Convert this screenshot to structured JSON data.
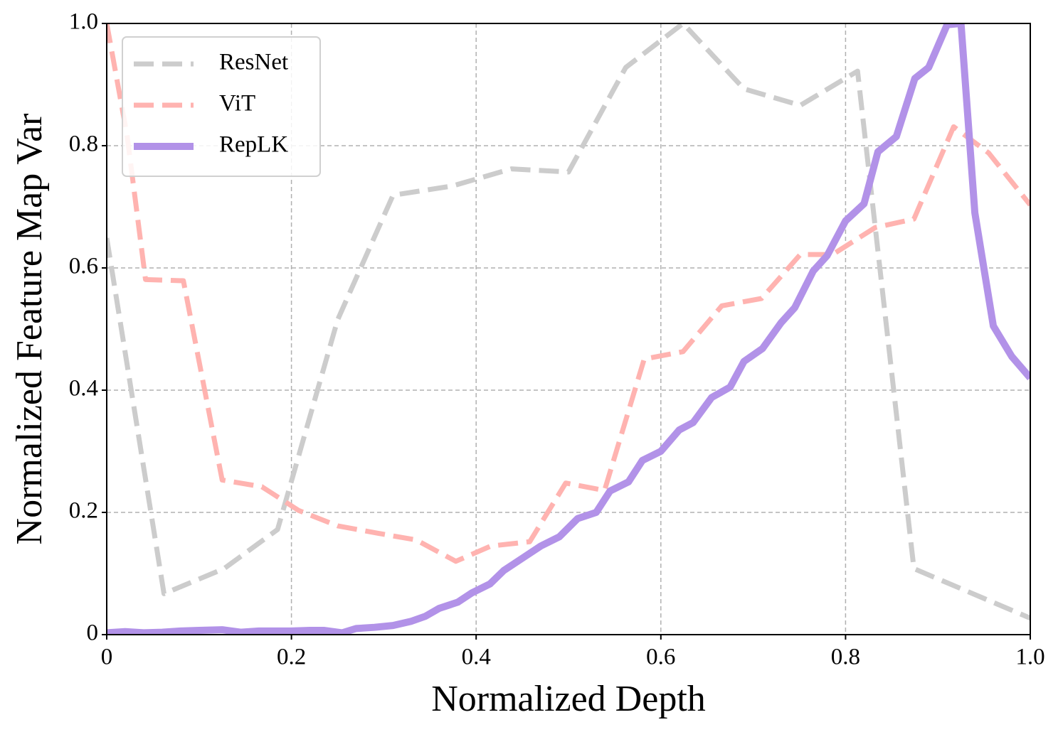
{
  "chart_data": {
    "type": "line",
    "xlabel": "Normalized Depth",
    "ylabel": "Normalized Feature Map Var",
    "xlim": [
      0,
      1
    ],
    "ylim": [
      0,
      1
    ],
    "xticks": [
      0,
      0.2,
      0.4,
      0.6,
      0.8,
      {
        "value": 1,
        "label": "1.0"
      }
    ],
    "yticks": [
      0,
      0.2,
      0.4,
      0.6,
      0.8,
      {
        "value": 1,
        "label": "1.0"
      }
    ],
    "grid": true,
    "legend": "upper left",
    "series": [
      {
        "name": "ResNet",
        "color": "#cccccc",
        "linestyle": "dashed",
        "x": [
          0,
          0.062,
          0.127,
          0.185,
          0.25,
          0.31,
          0.374,
          0.438,
          0.5,
          0.562,
          0.624,
          0.69,
          0.751,
          0.813,
          0.874,
          1.0
        ],
        "values": [
          0.649,
          0.067,
          0.108,
          0.172,
          0.515,
          0.719,
          0.734,
          0.762,
          0.757,
          0.928,
          1.0,
          0.893,
          0.866,
          0.922,
          0.108,
          0.027
        ]
      },
      {
        "name": "ViT",
        "color": "#ffb3b0",
        "linestyle": "dashed",
        "x": [
          0,
          0.022,
          0.042,
          0.083,
          0.125,
          0.168,
          0.208,
          0.25,
          0.293,
          0.335,
          0.378,
          0.416,
          0.458,
          0.497,
          0.539,
          0.582,
          0.624,
          0.666,
          0.709,
          0.751,
          0.786,
          0.832,
          0.874,
          0.917,
          0.955,
          1.0
        ],
        "values": [
          1.0,
          0.817,
          0.581,
          0.579,
          0.253,
          0.242,
          0.203,
          0.178,
          0.166,
          0.155,
          0.12,
          0.145,
          0.152,
          0.248,
          0.236,
          0.451,
          0.463,
          0.538,
          0.55,
          0.622,
          0.622,
          0.666,
          0.68,
          0.831,
          0.788,
          0.703
        ]
      },
      {
        "name": "RepLK",
        "color": "#b292e8",
        "linestyle": "solid",
        "x": [
          0,
          0.02,
          0.04,
          0.06,
          0.08,
          0.1,
          0.125,
          0.145,
          0.165,
          0.2,
          0.22,
          0.235,
          0.255,
          0.27,
          0.29,
          0.31,
          0.33,
          0.345,
          0.36,
          0.38,
          0.395,
          0.415,
          0.43,
          0.45,
          0.47,
          0.49,
          0.51,
          0.53,
          0.545,
          0.565,
          0.58,
          0.6,
          0.62,
          0.635,
          0.655,
          0.675,
          0.69,
          0.71,
          0.73,
          0.745,
          0.765,
          0.78,
          0.8,
          0.82,
          0.835,
          0.855,
          0.875,
          0.89,
          0.91,
          0.925,
          0.94,
          0.96,
          0.98,
          1.0
        ],
        "values": [
          0.003,
          0.005,
          0.003,
          0.004,
          0.006,
          0.007,
          0.008,
          0.004,
          0.006,
          0.006,
          0.007,
          0.007,
          0.003,
          0.01,
          0.012,
          0.015,
          0.022,
          0.03,
          0.043,
          0.053,
          0.068,
          0.083,
          0.105,
          0.125,
          0.145,
          0.16,
          0.19,
          0.2,
          0.235,
          0.25,
          0.285,
          0.3,
          0.335,
          0.347,
          0.388,
          0.405,
          0.447,
          0.468,
          0.51,
          0.535,
          0.595,
          0.62,
          0.677,
          0.705,
          0.79,
          0.815,
          0.91,
          0.928,
          0.998,
          1.0,
          0.69,
          0.505,
          0.455,
          0.42
        ]
      }
    ]
  }
}
